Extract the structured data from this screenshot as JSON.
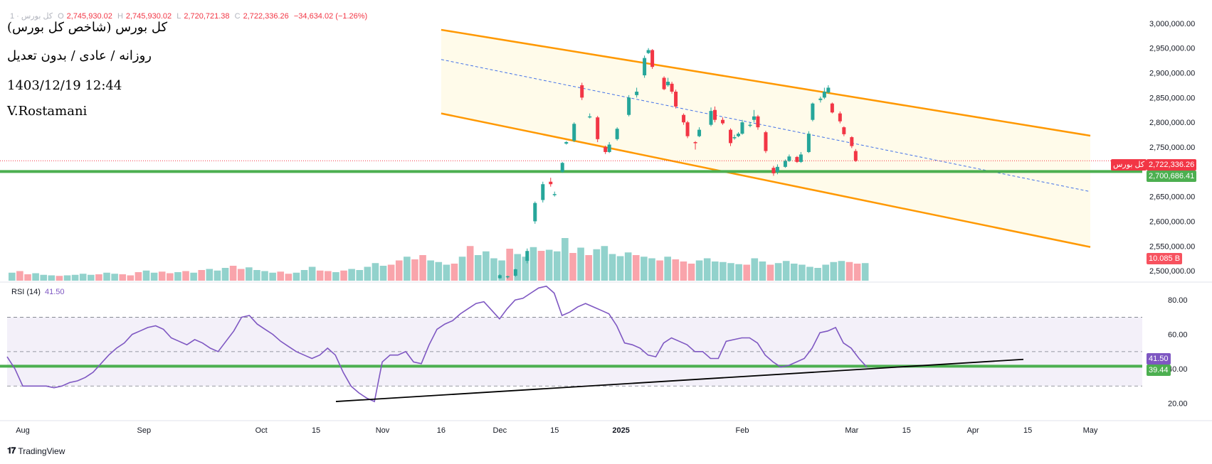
{
  "header": {
    "symbol_line": "کل بورس · 1",
    "open_label": "O",
    "open": "2,745,930.02",
    "high_label": "H",
    "high": "2,745,930.02",
    "low_label": "L",
    "low": "2,720,721.38",
    "close_label": "C",
    "close": "2,722,336.26",
    "change": "−34,634.02 (−1.26%)"
  },
  "annotations": {
    "title": "کل بورس (شاخص کل بورس)",
    "subtitle": "روزانه / عادی / بدون تعدیل",
    "datetime": "1403/12/19 12:44",
    "author": "V.Rostamani"
  },
  "price_tags": {
    "symbol_tag": "کل بورس",
    "last_price": "2,722,336.26",
    "support_price": "2,700,686.41",
    "volume": "10.085 B",
    "rsi_value": "41.50",
    "rsi_line_value": "39.44"
  },
  "rsi_legend": {
    "label": "RSI (14)",
    "value": "41.50"
  },
  "branding": {
    "name": "TradingView"
  },
  "colors": {
    "up": "#26a69a",
    "down": "#f23645",
    "channel": "#ff9800",
    "support": "#4caf50",
    "rsi": "#7e57c2",
    "trendline": "#000000"
  },
  "chart_data": [
    {
      "type": "candlestick",
      "title": "کل بورس (شاخص کل بورس)",
      "y_axis_ticks": [
        2500000,
        2550000,
        2600000,
        2650000,
        2700000,
        2750000,
        2800000,
        2850000,
        2900000,
        2950000,
        3000000
      ],
      "y_tick_labels": [
        "2,500,000.00",
        "2,550,000.00",
        "2,600,000.00",
        "2,650,000.00",
        "2,700,000.00",
        "2,750,000.00",
        "2,800,000.00",
        "2,850,000.00",
        "2,900,000.00",
        "2,950,000.00",
        "3,000,000.00"
      ],
      "ylim": [
        2480000,
        3030000
      ],
      "x_tick_labels": [
        "Aug",
        "Sep",
        "Oct",
        "15",
        "Nov",
        "16",
        "Dec",
        "15",
        "2025",
        "Feb",
        "Mar",
        "15",
        "Apr",
        "15",
        "May"
      ],
      "x_tick_dates": [
        "2024-08-01",
        "2024-09-01",
        "2024-10-01",
        "2024-10-15",
        "2024-11-01",
        "2024-11-16",
        "2024-12-01",
        "2024-12-15",
        "2025-01-01",
        "2025-02-01",
        "2025-03-01",
        "2025-03-15",
        "2025-04-01",
        "2025-04-15",
        "2025-05-01"
      ],
      "candles": [
        {
          "date": "2024-12-01",
          "o": 2485000,
          "h": 2493000,
          "l": 2484000,
          "c": 2491000
        },
        {
          "date": "2024-12-03",
          "o": 2487000,
          "h": 2490000,
          "l": 2484000,
          "c": 2489000
        },
        {
          "date": "2024-12-05",
          "o": 2490000,
          "h": 2504000,
          "l": 2488000,
          "c": 2503000
        },
        {
          "date": "2024-12-08",
          "o": 2520000,
          "h": 2545000,
          "l": 2515000,
          "c": 2540000
        },
        {
          "date": "2024-12-10",
          "o": 2600000,
          "h": 2640000,
          "l": 2595000,
          "c": 2637000
        },
        {
          "date": "2024-12-12",
          "o": 2643000,
          "h": 2680000,
          "l": 2638000,
          "c": 2675000
        },
        {
          "date": "2024-12-14",
          "o": 2680000,
          "h": 2688000,
          "l": 2670000,
          "c": 2675000
        },
        {
          "date": "2024-12-15",
          "o": 2653000,
          "h": 2660000,
          "l": 2650000,
          "c": 2655000
        },
        {
          "date": "2024-12-17",
          "o": 2700000,
          "h": 2720000,
          "l": 2698000,
          "c": 2718000
        },
        {
          "date": "2024-12-18",
          "o": 2757000,
          "h": 2762000,
          "l": 2755000,
          "c": 2760000
        },
        {
          "date": "2024-12-20",
          "o": 2763000,
          "h": 2800000,
          "l": 2760000,
          "c": 2797000
        },
        {
          "date": "2024-12-22",
          "o": 2875000,
          "h": 2880000,
          "l": 2845000,
          "c": 2850000
        },
        {
          "date": "2024-12-24",
          "o": 2812000,
          "h": 2818000,
          "l": 2808000,
          "c": 2812000
        },
        {
          "date": "2024-12-26",
          "o": 2810000,
          "h": 2813000,
          "l": 2760000,
          "c": 2766000
        },
        {
          "date": "2024-12-28",
          "o": 2750000,
          "h": 2753000,
          "l": 2736000,
          "c": 2740000
        },
        {
          "date": "2024-12-29",
          "o": 2740000,
          "h": 2760000,
          "l": 2738000,
          "c": 2755000
        },
        {
          "date": "2024-12-31",
          "o": 2766000,
          "h": 2790000,
          "l": 2763000,
          "c": 2787000
        },
        {
          "date": "2025-01-03",
          "o": 2815000,
          "h": 2855000,
          "l": 2812000,
          "c": 2850000
        },
        {
          "date": "2025-01-05",
          "o": 2855000,
          "h": 2870000,
          "l": 2850000,
          "c": 2862000
        },
        {
          "date": "2025-01-07",
          "o": 2895000,
          "h": 2935000,
          "l": 2890000,
          "c": 2930000
        },
        {
          "date": "2025-01-08",
          "o": 2940000,
          "h": 2950000,
          "l": 2938000,
          "c": 2946000
        },
        {
          "date": "2025-01-09",
          "o": 2946000,
          "h": 2948000,
          "l": 2908000,
          "c": 2912000
        },
        {
          "date": "2025-01-12",
          "o": 2890000,
          "h": 2893000,
          "l": 2865000,
          "c": 2867000
        },
        {
          "date": "2025-01-13",
          "o": 2875000,
          "h": 2890000,
          "l": 2872000,
          "c": 2882000
        },
        {
          "date": "2025-01-14",
          "o": 2878000,
          "h": 2882000,
          "l": 2858000,
          "c": 2862000
        },
        {
          "date": "2025-01-15",
          "o": 2862000,
          "h": 2866000,
          "l": 2828000,
          "c": 2832000
        },
        {
          "date": "2025-01-17",
          "o": 2815000,
          "h": 2818000,
          "l": 2795000,
          "c": 2800000
        },
        {
          "date": "2025-01-18",
          "o": 2800000,
          "h": 2803000,
          "l": 2768000,
          "c": 2772000
        },
        {
          "date": "2025-01-20",
          "o": 2760000,
          "h": 2762000,
          "l": 2745000,
          "c": 2758000
        },
        {
          "date": "2025-01-21",
          "o": 2772000,
          "h": 2790000,
          "l": 2770000,
          "c": 2785000
        },
        {
          "date": "2025-01-24",
          "o": 2795000,
          "h": 2830000,
          "l": 2792000,
          "c": 2823000
        },
        {
          "date": "2025-01-25",
          "o": 2825000,
          "h": 2832000,
          "l": 2800000,
          "c": 2805000
        },
        {
          "date": "2025-01-27",
          "o": 2805000,
          "h": 2810000,
          "l": 2795000,
          "c": 2798000
        },
        {
          "date": "2025-01-29",
          "o": 2785000,
          "h": 2788000,
          "l": 2752000,
          "c": 2758000
        },
        {
          "date": "2025-01-30",
          "o": 2768000,
          "h": 2775000,
          "l": 2765000,
          "c": 2770000
        },
        {
          "date": "2025-01-31",
          "o": 2772000,
          "h": 2780000,
          "l": 2770000,
          "c": 2777000
        },
        {
          "date": "2025-02-01",
          "o": 2777000,
          "h": 2805000,
          "l": 2775000,
          "c": 2800000
        },
        {
          "date": "2025-02-03",
          "o": 2793000,
          "h": 2800000,
          "l": 2790000,
          "c": 2795000
        },
        {
          "date": "2025-02-04",
          "o": 2805000,
          "h": 2825000,
          "l": 2800000,
          "c": 2812000
        },
        {
          "date": "2025-02-05",
          "o": 2812000,
          "h": 2815000,
          "l": 2785000,
          "c": 2790000
        },
        {
          "date": "2025-02-07",
          "o": 2780000,
          "h": 2783000,
          "l": 2738000,
          "c": 2742000
        },
        {
          "date": "2025-02-09",
          "o": 2708000,
          "h": 2712000,
          "l": 2692000,
          "c": 2697000
        },
        {
          "date": "2025-02-10",
          "o": 2700000,
          "h": 2715000,
          "l": 2695000,
          "c": 2710000
        },
        {
          "date": "2025-02-12",
          "o": 2710000,
          "h": 2725000,
          "l": 2708000,
          "c": 2722000
        },
        {
          "date": "2025-02-13",
          "o": 2722000,
          "h": 2735000,
          "l": 2720000,
          "c": 2731000
        },
        {
          "date": "2025-02-15",
          "o": 2730000,
          "h": 2732000,
          "l": 2718000,
          "c": 2720000
        },
        {
          "date": "2025-02-16",
          "o": 2720000,
          "h": 2740000,
          "l": 2718000,
          "c": 2735000
        },
        {
          "date": "2025-02-18",
          "o": 2740000,
          "h": 2782000,
          "l": 2738000,
          "c": 2777000
        },
        {
          "date": "2025-02-19",
          "o": 2805000,
          "h": 2840000,
          "l": 2802000,
          "c": 2838000
        },
        {
          "date": "2025-02-21",
          "o": 2845000,
          "h": 2852000,
          "l": 2840000,
          "c": 2848000
        },
        {
          "date": "2025-02-22",
          "o": 2850000,
          "h": 2870000,
          "l": 2847000,
          "c": 2862000
        },
        {
          "date": "2025-02-23",
          "o": 2860000,
          "h": 2875000,
          "l": 2858000,
          "c": 2870000
        },
        {
          "date": "2025-02-24",
          "o": 2838000,
          "h": 2840000,
          "l": 2818000,
          "c": 2820000
        },
        {
          "date": "2025-02-26",
          "o": 2818000,
          "h": 2822000,
          "l": 2798000,
          "c": 2802000
        },
        {
          "date": "2025-02-27",
          "o": 2790000,
          "h": 2792000,
          "l": 2772000,
          "c": 2776000
        },
        {
          "date": "2025-03-01",
          "o": 2770000,
          "h": 2772000,
          "l": 2748000,
          "c": 2752000
        },
        {
          "date": "2025-03-02",
          "o": 2742000,
          "h": 2746000,
          "l": 2720000,
          "c": 2722000
        }
      ],
      "volume_ylim": [
        0,
        12
      ]
    },
    {
      "type": "line",
      "name": "RSI (14)",
      "y_tick_labels": [
        "20.00",
        "40.00",
        "60.00",
        "80.00"
      ],
      "y_ticks": [
        20,
        40,
        60,
        80
      ],
      "ylim": [
        14,
        90
      ],
      "upper_band": 70,
      "middle_band": 50,
      "lower_band": 30,
      "support_level": 41.5,
      "last_value": 41.5,
      "values": [
        47,
        40,
        30,
        30,
        30,
        30,
        29,
        30,
        32,
        33,
        35,
        38,
        43,
        48,
        52,
        55,
        60,
        62,
        64,
        65,
        63,
        58,
        56,
        54,
        57,
        55,
        52,
        50,
        56,
        62,
        70,
        71,
        66,
        63,
        60,
        56,
        53,
        50,
        48,
        46,
        48,
        52,
        48,
        38,
        30,
        26,
        23,
        21,
        44,
        48,
        48,
        50,
        44,
        43,
        54,
        63,
        66,
        68,
        72,
        75,
        78,
        79,
        74,
        69,
        75,
        80,
        81,
        84,
        87,
        88,
        84,
        71,
        73,
        76,
        78,
        76,
        74,
        72,
        65,
        55,
        54,
        52,
        48,
        47,
        55,
        58,
        56,
        54,
        50,
        50,
        46,
        46,
        56,
        57,
        58,
        58,
        55,
        48,
        44,
        41,
        42,
        44,
        46,
        52,
        61,
        62,
        64,
        55,
        52,
        46,
        41
      ]
    }
  ]
}
